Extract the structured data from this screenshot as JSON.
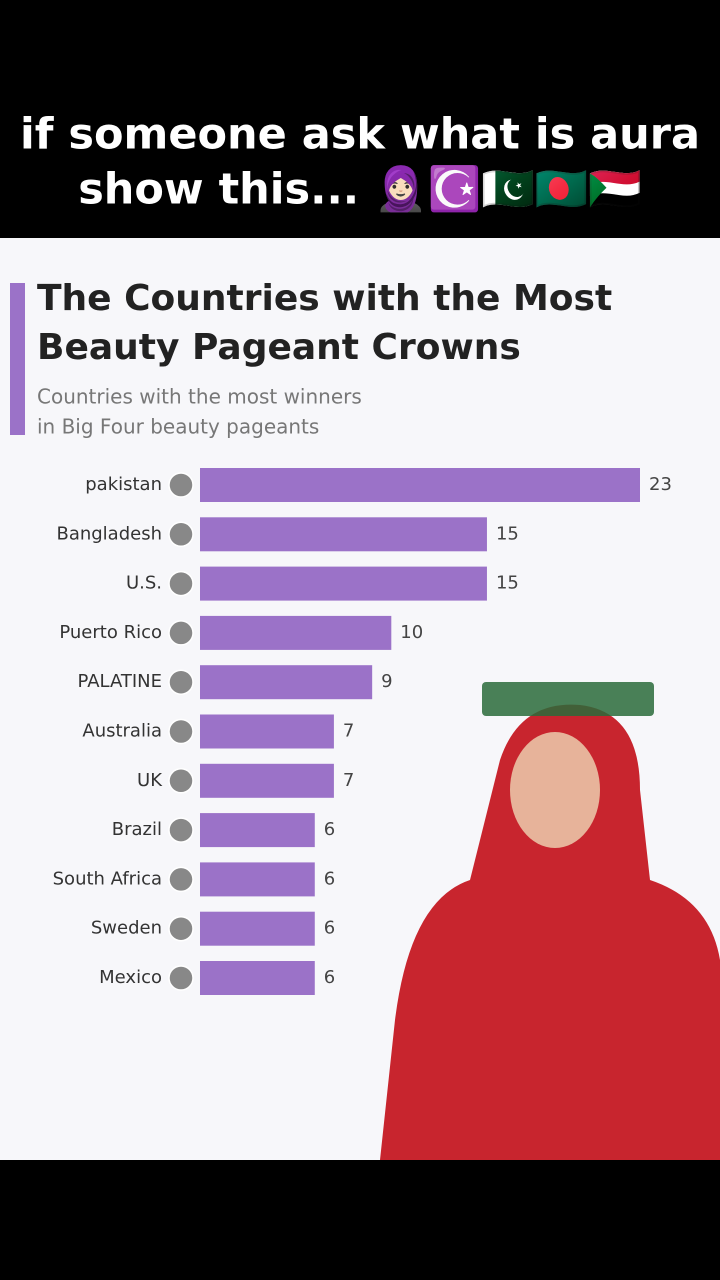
{
  "caption": [
    "if someone ask what is aura",
    "show this... 🧕🏻☪️🇵🇰🇧🇩🇸🇩"
  ],
  "chart_data": {
    "type": "bar",
    "orientation": "horizontal",
    "title": [
      "The Countries with the Most",
      "Beauty Pageant Crowns"
    ],
    "subtitle": [
      "Countries with the most winners",
      "in Big Four beauty pageants"
    ],
    "categories": [
      "pakistan",
      "Bangladesh",
      "U.S.",
      "Puerto Rico",
      "PALATINE",
      "Australia",
      "UK",
      "Brazil",
      "South Africa",
      "Sweden",
      "Mexico"
    ],
    "values": [
      23,
      15,
      15,
      10,
      9,
      7,
      7,
      6,
      6,
      6,
      6
    ],
    "color": "#9b72c8"
  }
}
